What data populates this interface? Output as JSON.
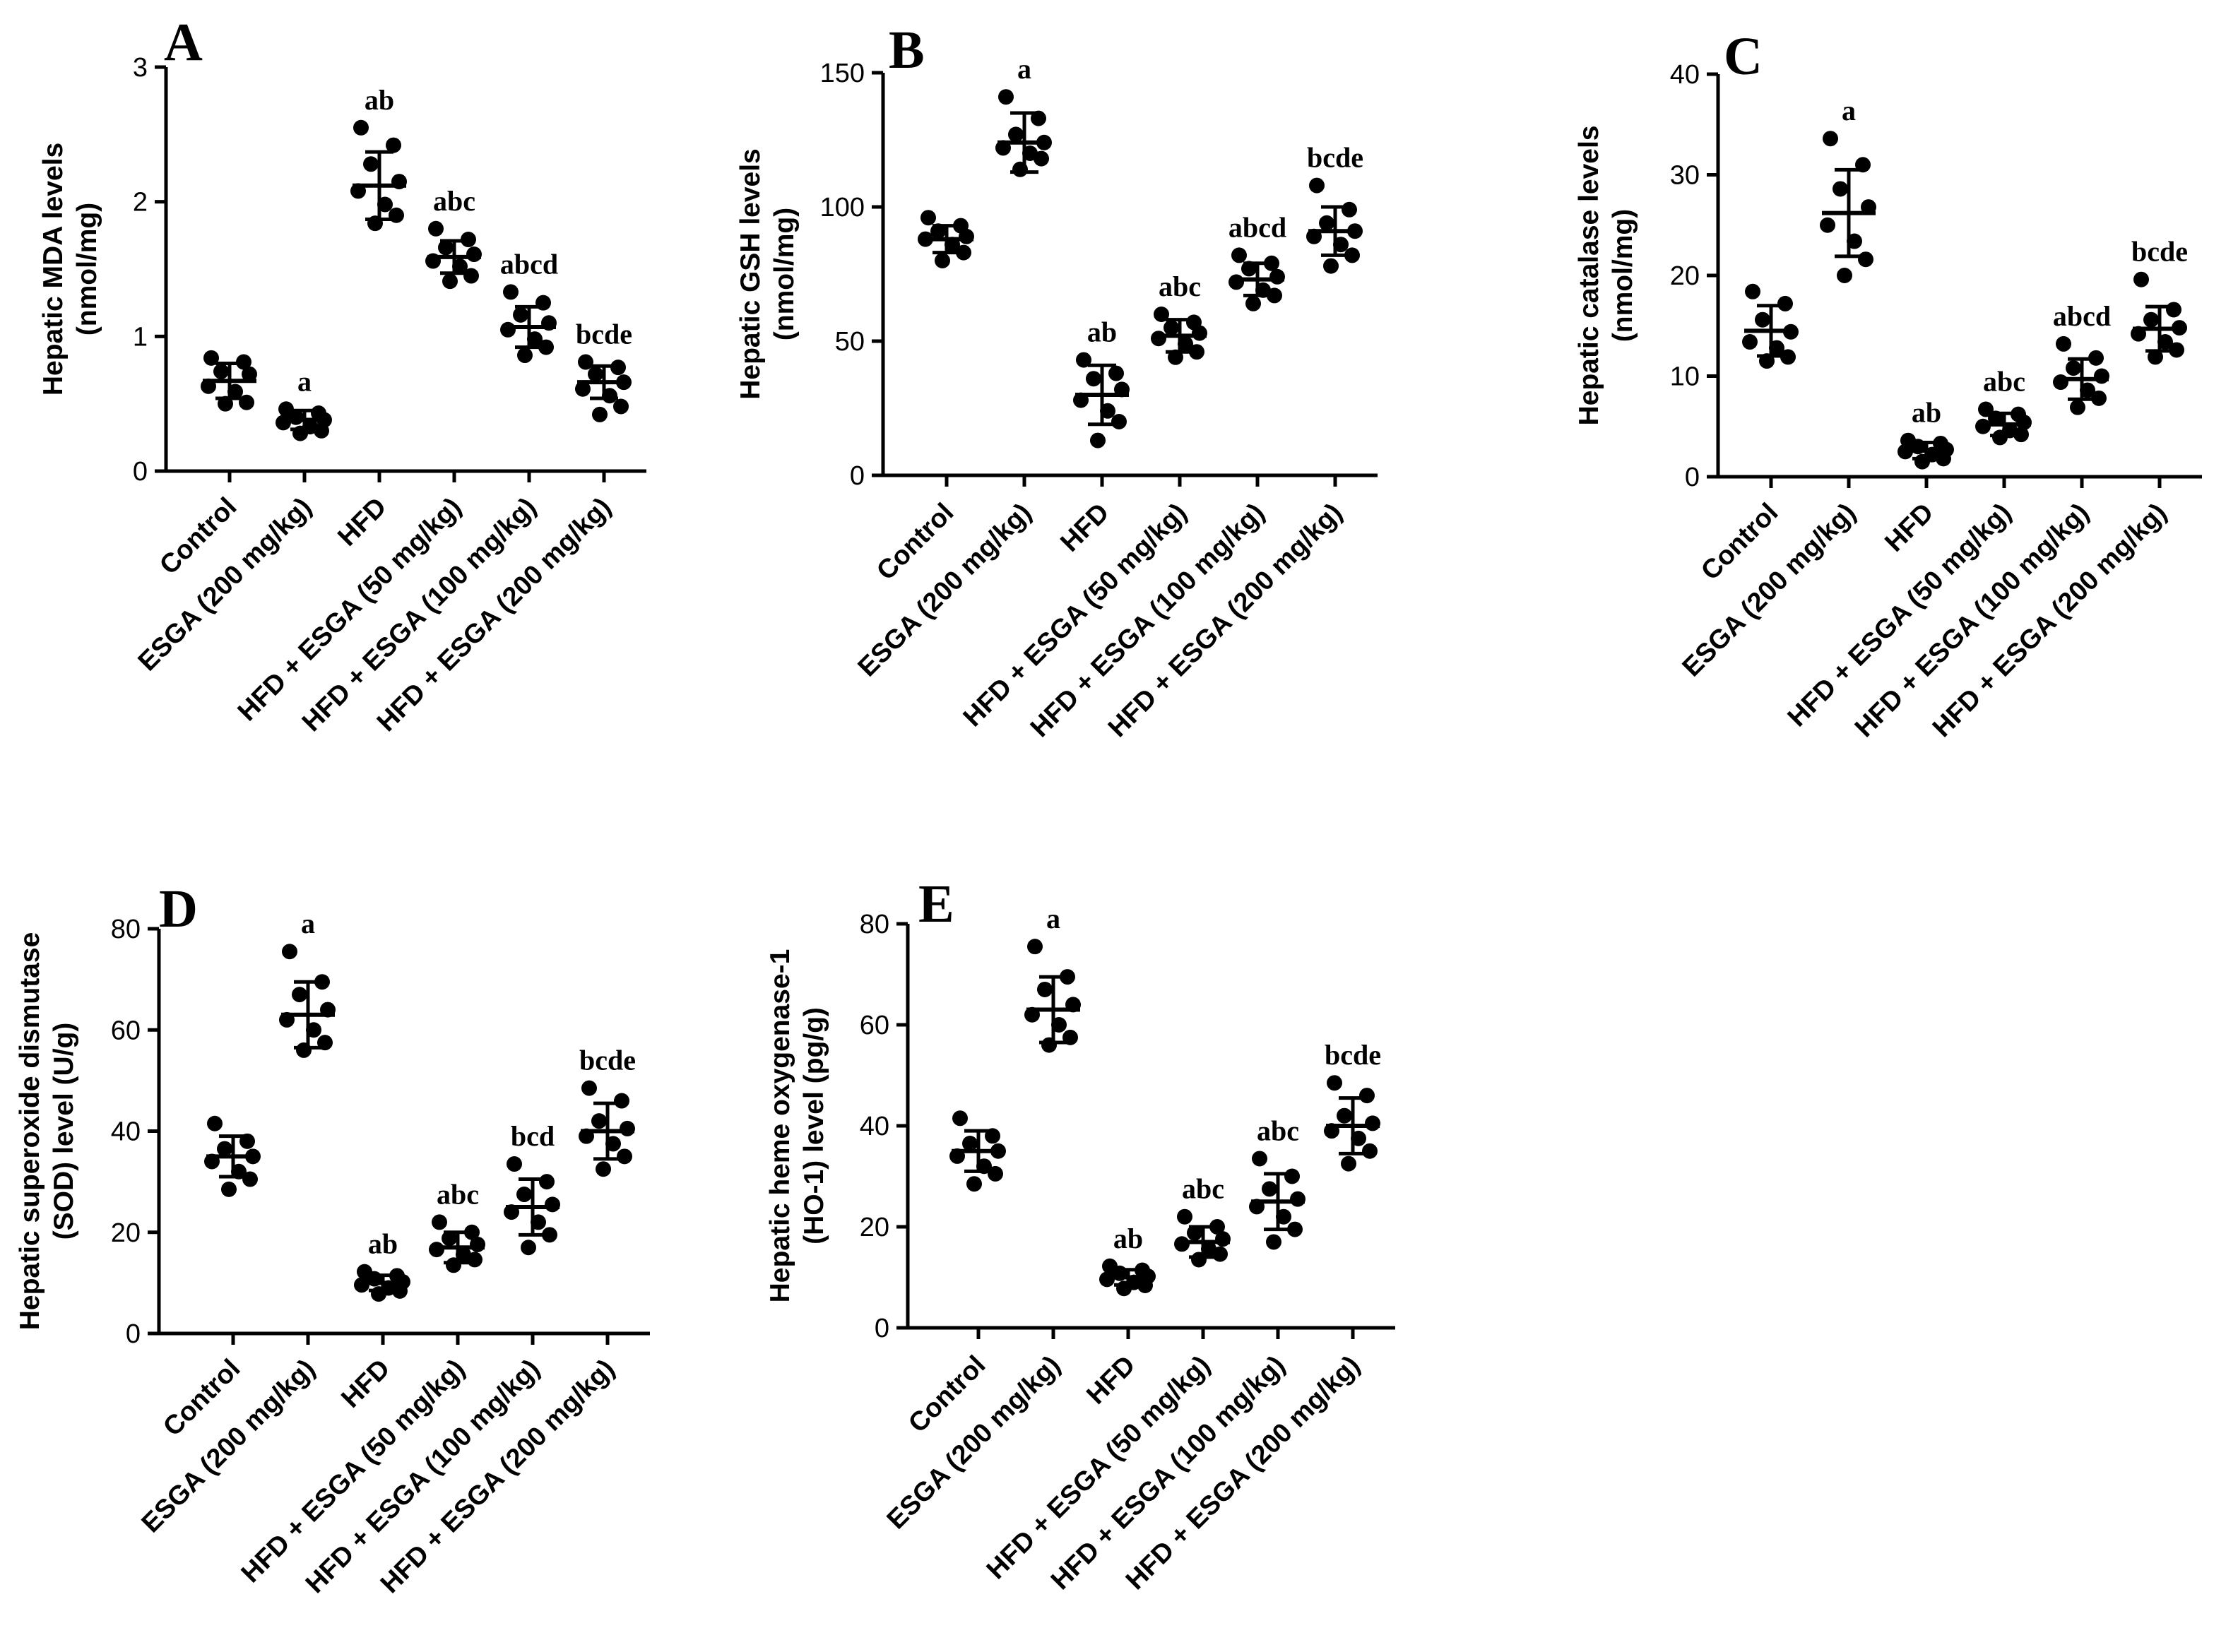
{
  "chart_data": [
    {
      "panel": "A",
      "type": "scatter",
      "ylabel_lines": [
        "Hepatic MDA levels",
        "(nmol/mg)"
      ],
      "ylim": [
        0,
        3
      ],
      "yticks": [
        0,
        1,
        2,
        3
      ],
      "categories": [
        "Control",
        "ESGA (200 mg/kg)",
        "HFD",
        "HFD + ESGA (50 mg/kg)",
        "HFD + ESGA (100 mg/kg)",
        "HFD + ESGA (200 mg/kg)"
      ],
      "groups": [
        {
          "mean": 0.67,
          "sd": 0.13,
          "sig": "",
          "points": [
            0.84,
            0.81,
            0.74,
            0.72,
            0.63,
            0.59,
            0.51,
            0.5
          ]
        },
        {
          "mean": 0.38,
          "sd": 0.07,
          "sig": "a",
          "points": [
            0.46,
            0.43,
            0.4,
            0.38,
            0.36,
            0.33,
            0.3,
            0.28
          ]
        },
        {
          "mean": 2.12,
          "sd": 0.25,
          "sig": "ab",
          "points": [
            2.55,
            2.42,
            2.28,
            2.15,
            2.08,
            1.98,
            1.9,
            1.84
          ]
        },
        {
          "mean": 1.59,
          "sd": 0.12,
          "sig": "abc",
          "points": [
            1.8,
            1.72,
            1.66,
            1.61,
            1.56,
            1.52,
            1.45,
            1.41
          ]
        },
        {
          "mean": 1.07,
          "sd": 0.15,
          "sig": "abcd",
          "points": [
            1.33,
            1.25,
            1.16,
            1.1,
            1.05,
            0.98,
            0.92,
            0.86
          ]
        },
        {
          "mean": 0.66,
          "sd": 0.12,
          "sig": "bcde",
          "points": [
            0.81,
            0.77,
            0.72,
            0.66,
            0.61,
            0.56,
            0.48,
            0.42
          ]
        }
      ]
    },
    {
      "panel": "B",
      "type": "scatter",
      "ylabel_lines": [
        "Hepatic GSH levels",
        "(nmol/mg)"
      ],
      "ylim": [
        0,
        150
      ],
      "yticks": [
        0,
        50,
        100,
        150
      ],
      "categories": [
        "Control",
        "ESGA (200 mg/kg)",
        "HFD",
        "HFD + ESGA (50 mg/kg)",
        "HFD + ESGA (100 mg/kg)",
        "HFD + ESGA (200 mg/kg)"
      ],
      "groups": [
        {
          "mean": 88,
          "sd": 5,
          "sig": "",
          "points": [
            96,
            93,
            91,
            89,
            88,
            86,
            83,
            80
          ]
        },
        {
          "mean": 124,
          "sd": 11,
          "sig": "a",
          "points": [
            141,
            133,
            127,
            124,
            122,
            120,
            118,
            114
          ]
        },
        {
          "mean": 30,
          "sd": 11,
          "sig": "ab",
          "points": [
            43,
            38,
            36,
            32,
            28,
            24,
            20,
            13
          ]
        },
        {
          "mean": 52,
          "sd": 6,
          "sig": "abc",
          "points": [
            60,
            57,
            55,
            53,
            51,
            49,
            46,
            44
          ]
        },
        {
          "mean": 73,
          "sd": 6,
          "sig": "abcd",
          "points": [
            82,
            79,
            77,
            74,
            72,
            69,
            67,
            64
          ]
        },
        {
          "mean": 91,
          "sd": 9,
          "sig": "bcde",
          "points": [
            108,
            99,
            94,
            91,
            89,
            86,
            82,
            78
          ]
        }
      ]
    },
    {
      "panel": "C",
      "type": "scatter",
      "ylabel_lines": [
        "Hepatic catalase levels",
        "(nmol/mg)"
      ],
      "ylim": [
        0,
        40
      ],
      "yticks": [
        0,
        10,
        20,
        30,
        40
      ],
      "categories": [
        "Control",
        "ESGA (200 mg/kg)",
        "HFD",
        "HFD + ESGA (50 mg/kg)",
        "HFD + ESGA (100 mg/kg)",
        "HFD + ESGA (200 mg/kg)"
      ],
      "groups": [
        {
          "mean": 14.5,
          "sd": 2.5,
          "sig": "",
          "points": [
            18.4,
            17.2,
            15.6,
            14.4,
            13.4,
            12.8,
            11.9,
            11.5
          ]
        },
        {
          "mean": 26.2,
          "sd": 4.3,
          "sig": "a",
          "points": [
            33.6,
            31.0,
            28.6,
            26.8,
            25.0,
            23.4,
            21.6,
            20.0
          ]
        },
        {
          "mean": 2.6,
          "sd": 0.8,
          "sig": "ab",
          "points": [
            3.6,
            3.3,
            3.0,
            2.7,
            2.5,
            2.2,
            1.8,
            1.5
          ]
        },
        {
          "mean": 5.2,
          "sd": 1.1,
          "sig": "abc",
          "points": [
            6.7,
            6.2,
            5.8,
            5.4,
            5.0,
            4.6,
            4.2,
            3.9
          ]
        },
        {
          "mean": 9.7,
          "sd": 2.0,
          "sig": "abcd",
          "points": [
            13.2,
            11.8,
            10.8,
            10.0,
            9.4,
            8.6,
            7.8,
            6.9
          ]
        },
        {
          "mean": 14.7,
          "sd": 2.2,
          "sig": "bcde",
          "points": [
            19.6,
            16.6,
            15.6,
            14.8,
            14.2,
            13.4,
            12.6,
            11.9
          ]
        }
      ]
    },
    {
      "panel": "D",
      "type": "scatter",
      "ylabel_lines": [
        "Hepatic superoxide dismutase",
        "(SOD) level (U/g)"
      ],
      "ylim": [
        0,
        80
      ],
      "yticks": [
        0,
        20,
        40,
        60,
        80
      ],
      "categories": [
        "Control",
        "ESGA (200 mg/kg)",
        "HFD",
        "HFD + ESGA (50 mg/kg)",
        "HFD + ESGA (100 mg/kg)",
        "HFD + ESGA (200 mg/kg)"
      ],
      "groups": [
        {
          "mean": 35,
          "sd": 4,
          "sig": "",
          "points": [
            41.5,
            38.0,
            36.5,
            35.0,
            34.0,
            32.0,
            30.5,
            28.5
          ]
        },
        {
          "mean": 63,
          "sd": 6.5,
          "sig": "a",
          "points": [
            75.5,
            69.5,
            67.0,
            64.0,
            62.0,
            60.0,
            57.5,
            56.0
          ]
        },
        {
          "mean": 10,
          "sd": 1.5,
          "sig": "ab",
          "points": [
            12.2,
            11.4,
            10.8,
            10.2,
            9.6,
            9.0,
            8.4,
            7.8
          ]
        },
        {
          "mean": 17,
          "sd": 3,
          "sig": "abc",
          "points": [
            22.0,
            20.0,
            18.8,
            17.6,
            16.6,
            15.6,
            14.6,
            13.5
          ]
        },
        {
          "mean": 25,
          "sd": 5.5,
          "sig": "bcd",
          "points": [
            33.5,
            30.0,
            27.5,
            25.5,
            24.0,
            22.0,
            19.5,
            17.0
          ]
        },
        {
          "mean": 40,
          "sd": 5.5,
          "sig": "bcde",
          "points": [
            48.5,
            46.0,
            42.0,
            40.5,
            39.0,
            37.5,
            35.0,
            32.5
          ]
        }
      ]
    },
    {
      "panel": "E",
      "type": "scatter",
      "ylabel_lines": [
        "Hepatic heme oxygenase-1",
        "(HO-1) level (pg/g)"
      ],
      "ylim": [
        0,
        80
      ],
      "yticks": [
        0,
        20,
        40,
        60,
        80
      ],
      "categories": [
        "Control",
        "ESGA (200 mg/kg)",
        "HFD",
        "HFD + ESGA (50 mg/kg)",
        "HFD + ESGA (100 mg/kg)",
        "HFD + ESGA (200 mg/kg)"
      ],
      "groups": [
        {
          "mean": 35,
          "sd": 4,
          "sig": "",
          "points": [
            41.5,
            38.0,
            36.5,
            35.0,
            34.0,
            32.0,
            30.5,
            28.5
          ]
        },
        {
          "mean": 63,
          "sd": 6.5,
          "sig": "a",
          "points": [
            75.5,
            69.5,
            67.0,
            64.0,
            62.0,
            60.0,
            57.5,
            56.0
          ]
        },
        {
          "mean": 10,
          "sd": 1.5,
          "sig": "ab",
          "points": [
            12.2,
            11.4,
            10.8,
            10.2,
            9.6,
            9.0,
            8.4,
            7.8
          ]
        },
        {
          "mean": 17,
          "sd": 3,
          "sig": "abc",
          "points": [
            22.0,
            20.0,
            18.8,
            17.6,
            16.6,
            15.6,
            14.6,
            13.5
          ]
        },
        {
          "mean": 25,
          "sd": 5.5,
          "sig": "abc",
          "points": [
            33.5,
            30.0,
            27.5,
            25.5,
            24.0,
            22.0,
            19.5,
            17.0
          ]
        },
        {
          "mean": 40,
          "sd": 5.5,
          "sig": "bcde",
          "points": [
            48.5,
            46.0,
            42.0,
            40.5,
            39.0,
            37.5,
            35.0,
            32.5
          ]
        }
      ]
    }
  ]
}
